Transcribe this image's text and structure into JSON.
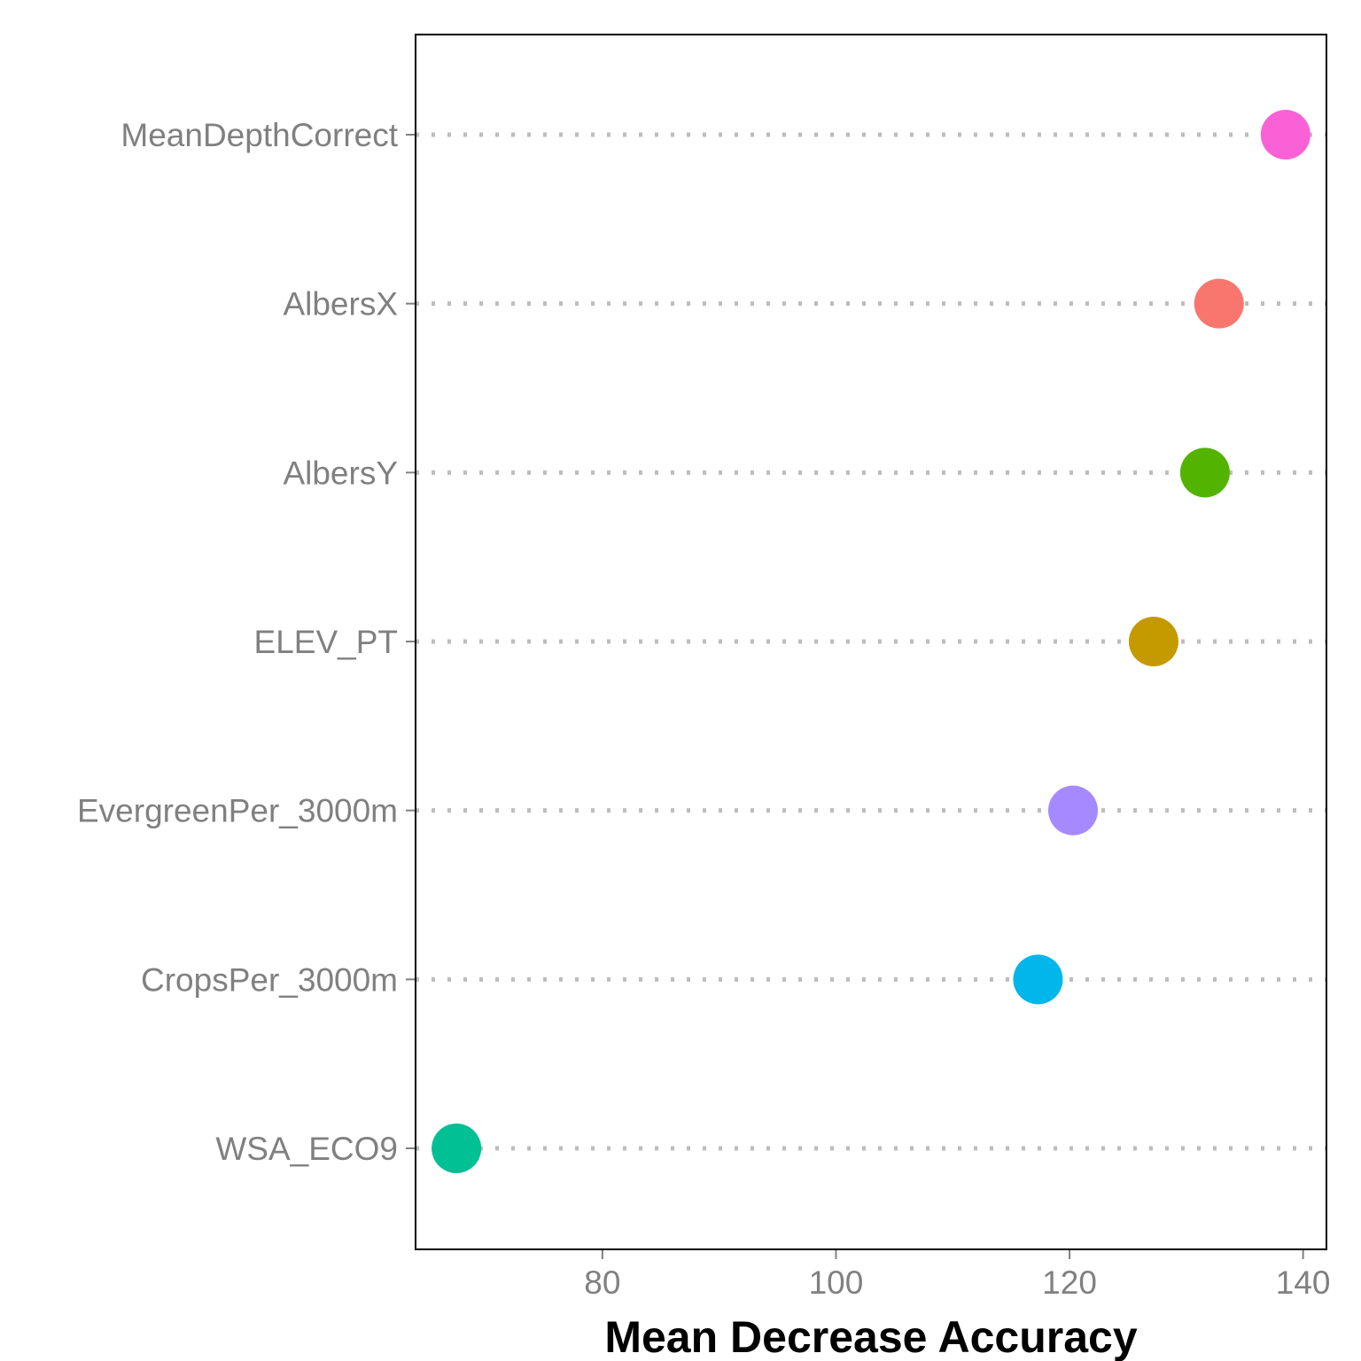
{
  "chart_data": {
    "type": "scatter",
    "subtype": "dot-plot",
    "categories": [
      "WSA_ECO9",
      "CropsPer_3000m",
      "EvergreenPer_3000m",
      "ELEV_PT",
      "AlbersY",
      "AlbersX",
      "MeanDepthCorrect"
    ],
    "values": [
      67.5,
      117.3,
      120.3,
      127.2,
      131.6,
      132.8,
      138.5
    ],
    "colors": [
      "#00C094",
      "#00B6EB",
      "#A58AFF",
      "#C49A00",
      "#53B400",
      "#F8766D",
      "#FB61D7"
    ],
    "xlabel": "Mean Decrease Accuracy",
    "ylabel": "",
    "xlim": [
      64,
      142
    ],
    "xticks": [
      80,
      100,
      120,
      140
    ],
    "grid": "dotted horizontal guides per category",
    "legend": "none"
  }
}
